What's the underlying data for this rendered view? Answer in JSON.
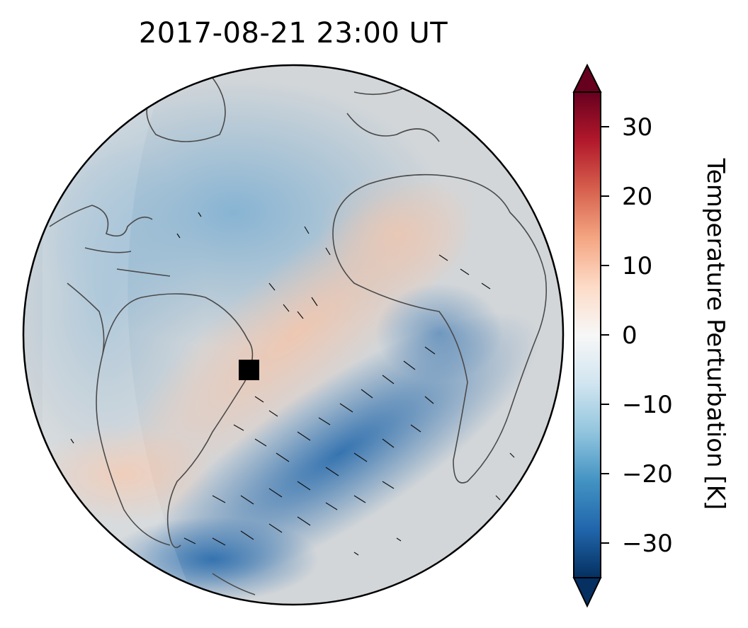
{
  "title": "2017-08-21  23:00 UT",
  "colorbar": {
    "label": "Temperature Perturbation [K]",
    "ticks": [
      {
        "value": 30,
        "label": "30"
      },
      {
        "value": 20,
        "label": "20"
      },
      {
        "value": 10,
        "label": "10"
      },
      {
        "value": 0,
        "label": "0"
      },
      {
        "value": -10,
        "label": "−10"
      },
      {
        "value": -20,
        "label": "−20"
      },
      {
        "value": -30,
        "label": "−30"
      }
    ],
    "range": [
      -35,
      35
    ],
    "colormap": [
      "#053061",
      "#2166ac",
      "#4393c3",
      "#92c5de",
      "#d1e5f0",
      "#f7f7f7",
      "#fddbc7",
      "#f4a582",
      "#d6604d",
      "#b2182b",
      "#67001f"
    ],
    "extend": "both"
  },
  "map": {
    "projection": "orthographic",
    "features": [
      "coastlines",
      "wind-vectors",
      "temperature-perturbation-field"
    ],
    "marker": {
      "shape": "square",
      "color": "#000000"
    }
  }
}
